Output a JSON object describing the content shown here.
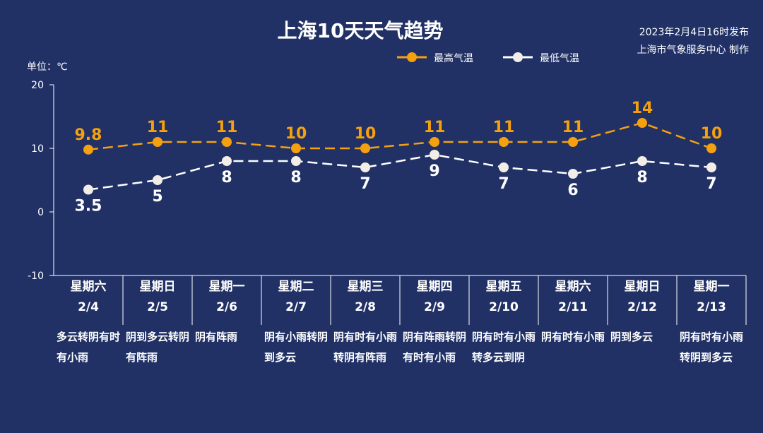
{
  "header": {
    "title": "上海10天天气趋势",
    "issue_time": "2023年2月4日16时发布",
    "issuer": "上海市气象服务中心 制作",
    "unit_label": "单位：℃"
  },
  "legend": {
    "high": "最高气温",
    "low": "最低气温"
  },
  "colors": {
    "background": "#213165",
    "high": "#F5A10F",
    "low": "#FFFFFF",
    "axis": "#FFFFFF"
  },
  "chart_data": {
    "type": "line",
    "title": "上海10天天气趋势",
    "ylabel": "单位：℃",
    "ylim": [
      -10,
      20
    ],
    "yticks": [
      -10,
      0,
      10,
      20
    ],
    "grid": false,
    "legend_position": "top-right",
    "categories": [
      "2/4",
      "2/5",
      "2/6",
      "2/7",
      "2/8",
      "2/9",
      "2/10",
      "2/11",
      "2/12",
      "2/13"
    ],
    "series": [
      {
        "name": "最高气温",
        "values": [
          9.8,
          11,
          11,
          10,
          10,
          11,
          11,
          11,
          14,
          10
        ],
        "labels": [
          "9.8",
          "11",
          "11",
          "10",
          "10",
          "11",
          "11",
          "11",
          "14",
          "10"
        ]
      },
      {
        "name": "最低气温",
        "values": [
          3.5,
          5,
          8,
          8,
          7,
          9,
          7,
          6,
          8,
          7
        ],
        "labels": [
          "3.5",
          "5",
          "8",
          "8",
          "7",
          "9",
          "7",
          "6",
          "8",
          "7"
        ]
      }
    ]
  },
  "days": [
    {
      "weekday": "星期六",
      "date": "2/4",
      "weather": "多云转阴有时有小雨"
    },
    {
      "weekday": "星期日",
      "date": "2/5",
      "weather": "阴到多云转阴有阵雨"
    },
    {
      "weekday": "星期一",
      "date": "2/6",
      "weather": "阴有阵雨"
    },
    {
      "weekday": "星期二",
      "date": "2/7",
      "weather": "阴有小雨转阴到多云"
    },
    {
      "weekday": "星期三",
      "date": "2/8",
      "weather": "阴有时有小雨转阴有阵雨"
    },
    {
      "weekday": "星期四",
      "date": "2/9",
      "weather": "阴有阵雨转阴有时有小雨"
    },
    {
      "weekday": "星期五",
      "date": "2/10",
      "weather": "阴有时有小雨转多云到阴"
    },
    {
      "weekday": "星期六",
      "date": "2/11",
      "weather": "阴有时有小雨"
    },
    {
      "weekday": "星期日",
      "date": "2/12",
      "weather": "阴到多云"
    },
    {
      "weekday": "星期一",
      "date": "2/13",
      "weather": "阴有时有小雨转阴到多云"
    }
  ]
}
